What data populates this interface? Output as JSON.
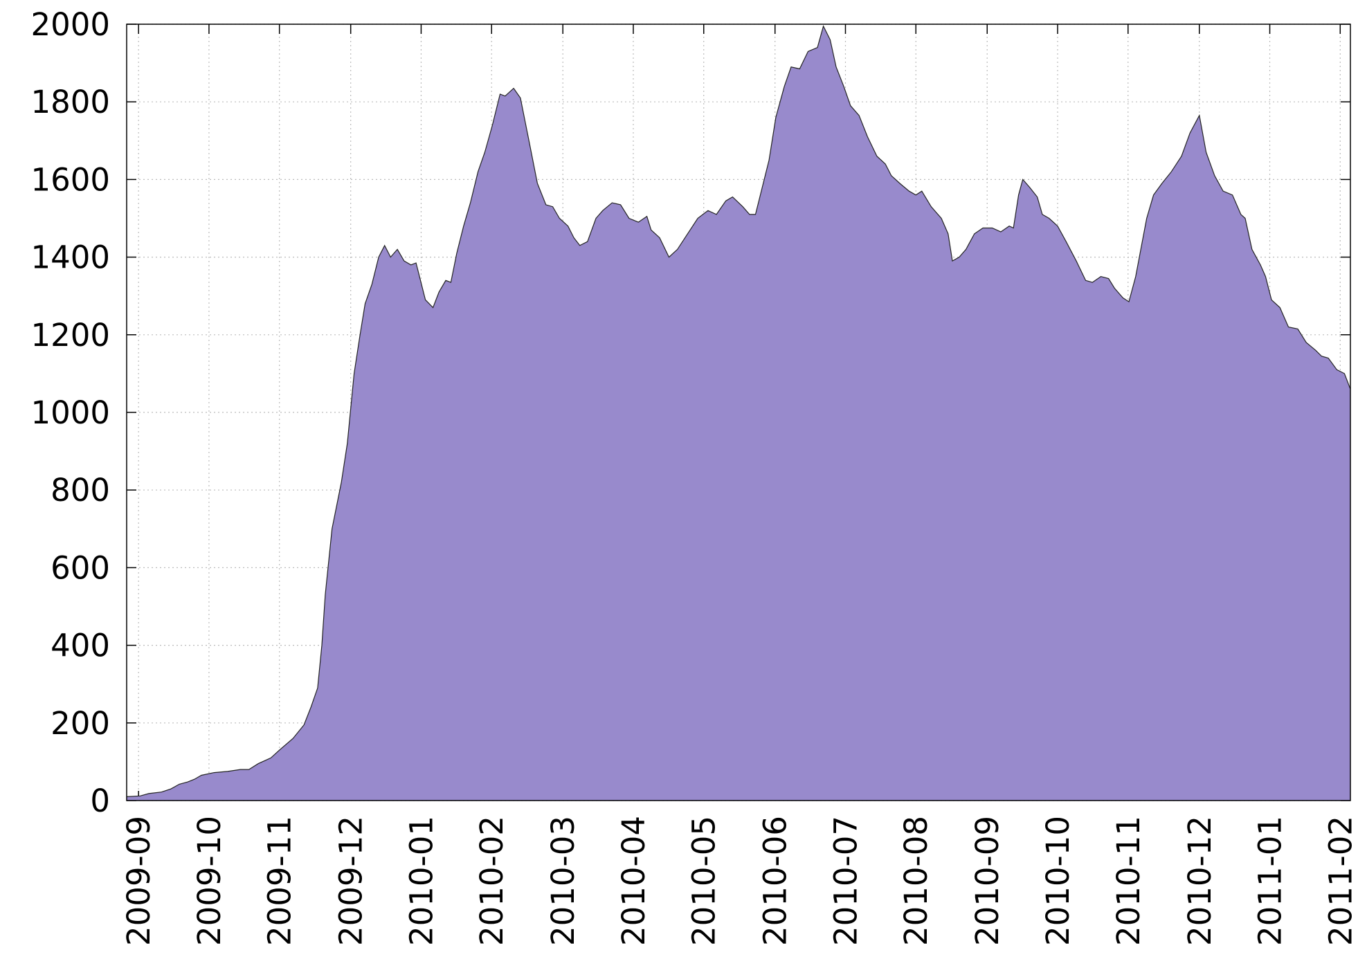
{
  "chart_data": {
    "type": "area",
    "color": "#988acc",
    "grid": true,
    "x": [
      2009.653,
      2009.669,
      2009.679,
      2009.694,
      2009.705,
      2009.715,
      2009.725,
      2009.733,
      2009.741,
      2009.756,
      2009.772,
      2009.787,
      2009.797,
      2009.808,
      2009.823,
      2009.833,
      2009.849,
      2009.862,
      2009.87,
      2009.878,
      2009.883,
      2009.887,
      2009.895,
      2009.906,
      2009.913,
      2009.921,
      2009.928,
      2009.934,
      2009.942,
      2009.95,
      2009.957,
      2009.964,
      2009.972,
      2009.98,
      2009.988,
      2009.994,
      2010.005,
      2010.014,
      2010.021,
      2010.029,
      2010.035,
      2010.042,
      2010.05,
      2010.058,
      2010.067,
      2010.075,
      2010.084,
      2010.093,
      2010.099,
      2010.109,
      2010.117,
      2010.127,
      2010.137,
      2010.147,
      2010.155,
      2010.163,
      2010.173,
      2010.18,
      2010.187,
      2010.196,
      2010.206,
      2010.214,
      2010.225,
      2010.235,
      2010.245,
      2010.256,
      2010.266,
      2010.271,
      2010.281,
      2010.292,
      2010.302,
      2010.314,
      2010.326,
      2010.338,
      2010.348,
      2010.359,
      2010.367,
      2010.379,
      2010.387,
      2010.394,
      2010.402,
      2010.41,
      2010.418,
      2010.428,
      2010.436,
      2010.446,
      2010.456,
      2010.467,
      2010.474,
      2010.482,
      2010.489,
      2010.498,
      2010.506,
      2010.516,
      2010.526,
      2010.537,
      2010.547,
      2010.554,
      2010.564,
      2010.575,
      2010.583,
      2010.59,
      2010.601,
      2010.613,
      2010.621,
      2010.626,
      2010.634,
      2010.642,
      2010.652,
      2010.662,
      2010.673,
      2010.683,
      2010.693,
      2010.698,
      2010.704,
      2010.709,
      2010.717,
      2010.726,
      2010.732,
      2010.74,
      2010.75,
      2010.76,
      2010.772,
      2010.783,
      2010.791,
      2010.801,
      2010.81,
      2010.817,
      2010.827,
      2010.834,
      2010.842,
      2010.848,
      2010.855,
      2010.863,
      2010.873,
      2010.884,
      2010.896,
      2010.906,
      2010.917,
      2010.925,
      2010.935,
      2010.945,
      2010.956,
      2010.966,
      2010.971,
      2010.979,
      2010.989,
      2010.995,
      2011.002,
      2011.012,
      2011.022,
      2011.033,
      2011.043,
      2011.054,
      2011.061,
      2011.069,
      2011.079,
      2011.088,
      2011.095
    ],
    "values": [
      10,
      12,
      18,
      22,
      30,
      42,
      48,
      55,
      65,
      72,
      75,
      80,
      80,
      95,
      110,
      130,
      160,
      195,
      240,
      290,
      400,
      530,
      700,
      820,
      920,
      1100,
      1200,
      1280,
      1330,
      1400,
      1430,
      1400,
      1420,
      1390,
      1380,
      1385,
      1290,
      1270,
      1310,
      1340,
      1335,
      1410,
      1480,
      1540,
      1620,
      1670,
      1740,
      1820,
      1815,
      1835,
      1810,
      1700,
      1590,
      1535,
      1530,
      1500,
      1480,
      1450,
      1430,
      1440,
      1500,
      1520,
      1540,
      1535,
      1500,
      1490,
      1505,
      1470,
      1450,
      1400,
      1420,
      1460,
      1500,
      1520,
      1510,
      1545,
      1555,
      1530,
      1510,
      1510,
      1580,
      1650,
      1760,
      1840,
      1890,
      1885,
      1930,
      1940,
      1995,
      1960,
      1890,
      1840,
      1790,
      1765,
      1710,
      1660,
      1640,
      1610,
      1590,
      1570,
      1560,
      1570,
      1530,
      1500,
      1460,
      1390,
      1400,
      1420,
      1460,
      1475,
      1475,
      1465,
      1480,
      1475,
      1560,
      1600,
      1580,
      1555,
      1510,
      1500,
      1480,
      1440,
      1390,
      1340,
      1335,
      1350,
      1345,
      1320,
      1295,
      1285,
      1350,
      1420,
      1500,
      1560,
      1590,
      1620,
      1660,
      1720,
      1765,
      1670,
      1610,
      1570,
      1560,
      1510,
      1500,
      1420,
      1380,
      1350,
      1290,
      1270,
      1220,
      1215,
      1180,
      1160,
      1145,
      1140,
      1110,
      1100,
      1060
    ],
    "xlim": [
      2009.653,
      2011.095
    ],
    "xticks": [
      {
        "value": 2009.667,
        "label": "2009-09"
      },
      {
        "value": 2009.75,
        "label": "2009-10"
      },
      {
        "value": 2009.833,
        "label": "2009-11"
      },
      {
        "value": 2009.917,
        "label": "2009-12"
      },
      {
        "value": 2010,
        "label": "2010-01"
      },
      {
        "value": 2010.083,
        "label": "2010-02"
      },
      {
        "value": 2010.167,
        "label": "2010-03"
      },
      {
        "value": 2010.25,
        "label": "2010-04"
      },
      {
        "value": 2010.333,
        "label": "2010-05"
      },
      {
        "value": 2010.417,
        "label": "2010-06"
      },
      {
        "value": 2010.5,
        "label": "2010-07"
      },
      {
        "value": 2010.583,
        "label": "2010-08"
      },
      {
        "value": 2010.667,
        "label": "2010-09"
      },
      {
        "value": 2010.75,
        "label": "2010-10"
      },
      {
        "value": 2010.833,
        "label": "2010-11"
      },
      {
        "value": 2010.917,
        "label": "2010-12"
      },
      {
        "value": 2011,
        "label": "2011-01"
      },
      {
        "value": 2011.083,
        "label": "2011-02"
      }
    ],
    "ylim": [
      0,
      2000
    ],
    "yticks": [
      0,
      200,
      400,
      600,
      800,
      1000,
      1200,
      1400,
      1600,
      1800,
      2000
    ]
  }
}
